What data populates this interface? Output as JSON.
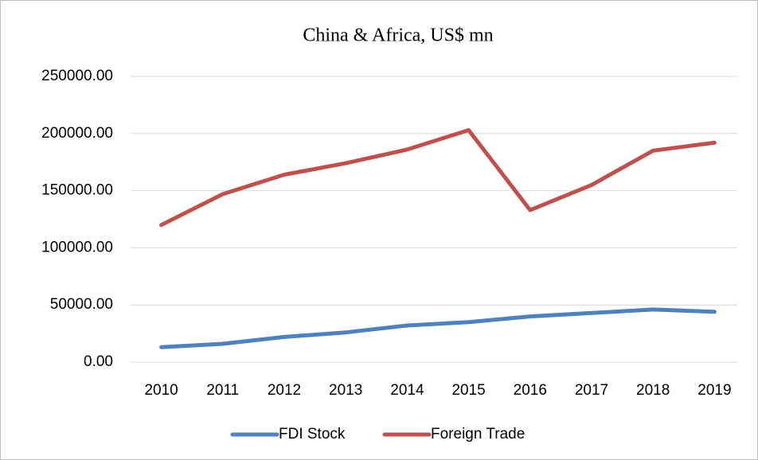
{
  "chart_data": {
    "type": "line",
    "title": "China & Africa, US$ mn",
    "categories": [
      "2010",
      "2011",
      "2012",
      "2013",
      "2014",
      "2015",
      "2016",
      "2017",
      "2018",
      "2019"
    ],
    "series": [
      {
        "name": "FDI Stock",
        "color": "#4f81bd",
        "values": [
          13000,
          16000,
          22000,
          26000,
          32000,
          35000,
          40000,
          43000,
          46000,
          44000
        ]
      },
      {
        "name": "Foreign Trade",
        "color": "#c0504d",
        "values": [
          120000,
          147000,
          164000,
          174000,
          186000,
          203000,
          133000,
          155000,
          185000,
          192000
        ]
      }
    ],
    "ylim": [
      0,
      250000
    ],
    "yticks": [
      {
        "value": 0,
        "label": "0.00"
      },
      {
        "value": 50000,
        "label": "50000.00"
      },
      {
        "value": 100000,
        "label": "100000.00"
      },
      {
        "value": 150000,
        "label": "150000.00"
      },
      {
        "value": 200000,
        "label": "200000.00"
      },
      {
        "value": 250000,
        "label": "250000.00"
      }
    ],
    "grid": true,
    "legend": "bottom"
  }
}
